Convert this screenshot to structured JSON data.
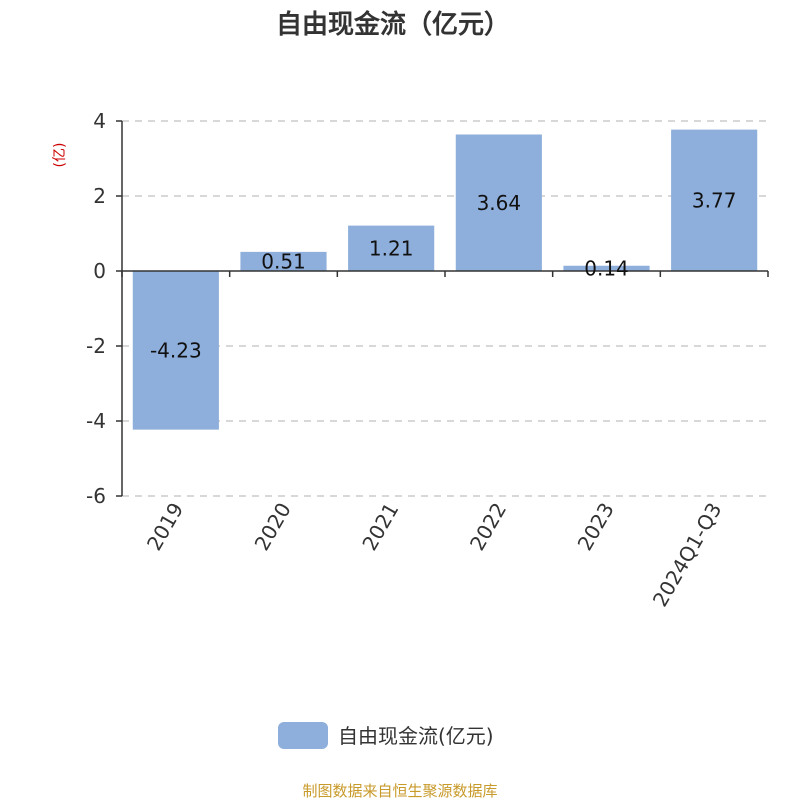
{
  "chart_data": {
    "type": "bar",
    "title": "自由现金流（亿元）",
    "unit_label": "(亿)",
    "categories": [
      "2019",
      "2020",
      "2021",
      "2022",
      "2023",
      "2024Q1-Q3"
    ],
    "series": [
      {
        "name": "自由现金流(亿元)",
        "values": [
          -4.23,
          0.51,
          1.21,
          3.64,
          0.14,
          3.77
        ]
      }
    ],
    "data_labels": [
      "-4.23",
      "0.51",
      "1.21",
      "3.64",
      "0.14",
      "3.77"
    ],
    "ylim": [
      -6,
      4
    ],
    "yticks": [
      -6,
      -4,
      -2,
      0,
      2,
      4
    ],
    "grid": true,
    "legend_position": "bottom-center"
  },
  "source_text": "制图数据来自恒生聚源数据库",
  "colors": {
    "bar": "#8eaedb",
    "title": "#333333",
    "unit": "#cc0000",
    "source": "#c89a2a",
    "grid": "#cccccc",
    "axis": "#333333"
  }
}
